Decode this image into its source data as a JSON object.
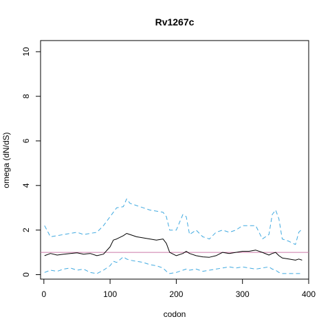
{
  "chart_data": {
    "type": "line",
    "title": "Rv1267c",
    "xlabel": "codon",
    "ylabel": "omega (dN/dS)",
    "xlim": [
      -5,
      400
    ],
    "ylim": [
      -0.2,
      10.5
    ],
    "xticks": [
      0,
      100,
      200,
      300,
      400
    ],
    "yticks": [
      0,
      2,
      4,
      6,
      8,
      10
    ],
    "grid": false,
    "reference_line": {
      "y": 1,
      "color": "#cc79a7"
    },
    "x": [
      1,
      10,
      20,
      30,
      40,
      50,
      60,
      70,
      80,
      90,
      100,
      105,
      110,
      120,
      125,
      130,
      140,
      150,
      160,
      170,
      180,
      185,
      190,
      200,
      210,
      215,
      220,
      230,
      240,
      250,
      260,
      270,
      280,
      290,
      300,
      310,
      320,
      330,
      340,
      345,
      350,
      355,
      360,
      370,
      380,
      385,
      390
    ],
    "series": [
      {
        "style": "solid",
        "color": "#000000",
        "values": [
          0.85,
          0.95,
          0.88,
          0.92,
          0.95,
          0.98,
          0.92,
          0.95,
          0.85,
          0.92,
          1.25,
          1.55,
          1.6,
          1.75,
          1.85,
          1.8,
          1.7,
          1.65,
          1.6,
          1.55,
          1.6,
          1.4,
          1.0,
          0.85,
          0.95,
          1.05,
          0.95,
          0.85,
          0.8,
          0.78,
          0.85,
          1.0,
          0.95,
          1.0,
          1.05,
          1.05,
          1.1,
          1.0,
          0.88,
          0.95,
          1.0,
          0.85,
          0.75,
          0.7,
          0.65,
          0.7,
          0.65
        ]
      },
      {
        "style": "dashed",
        "color": "#3fa9e0",
        "values": [
          2.2,
          1.7,
          1.75,
          1.8,
          1.85,
          1.9,
          1.8,
          1.85,
          1.9,
          2.2,
          2.6,
          2.8,
          3.0,
          3.05,
          3.4,
          3.2,
          3.1,
          3.0,
          2.9,
          2.85,
          2.8,
          2.6,
          2.0,
          2.0,
          2.7,
          2.6,
          1.8,
          2.0,
          1.7,
          1.6,
          1.9,
          2.0,
          1.9,
          2.0,
          2.2,
          2.2,
          2.2,
          1.6,
          1.8,
          2.7,
          2.9,
          2.5,
          1.6,
          1.5,
          1.35,
          1.9,
          2.05
        ]
      },
      {
        "style": "dashed",
        "color": "#3fa9e0",
        "values": [
          0.1,
          0.2,
          0.15,
          0.25,
          0.3,
          0.2,
          0.25,
          0.1,
          0.05,
          0.2,
          0.4,
          0.6,
          0.55,
          0.8,
          0.7,
          0.65,
          0.6,
          0.55,
          0.45,
          0.4,
          0.3,
          0.15,
          0.05,
          0.1,
          0.2,
          0.25,
          0.2,
          0.25,
          0.15,
          0.2,
          0.25,
          0.3,
          0.35,
          0.3,
          0.35,
          0.3,
          0.25,
          0.3,
          0.35,
          0.25,
          0.2,
          0.1,
          0.05,
          0.05,
          0.05,
          0.05,
          0.05
        ]
      }
    ]
  }
}
